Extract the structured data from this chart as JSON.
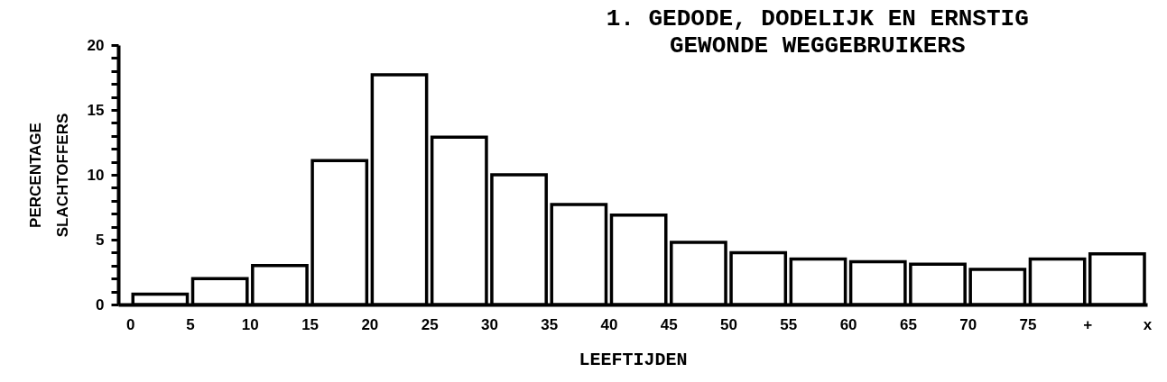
{
  "chart_data": {
    "type": "histogram",
    "title": "1. GEDODE, DODELIJK EN ERNSTIG GEWONDE WEGGEBRUIKERS",
    "xlabel": "LEEFTIJDEN",
    "ylabel": "PERCENTAGE SLACHTOFFERS",
    "bins": [
      0,
      5,
      10,
      15,
      20,
      25,
      30,
      35,
      40,
      45,
      50,
      55,
      60,
      65,
      70,
      75,
      80,
      85
    ],
    "values": [
      0.8,
      2.0,
      3.0,
      11.1,
      17.7,
      12.9,
      10.0,
      7.7,
      6.9,
      4.8,
      4.0,
      3.5,
      3.3,
      3.1,
      2.7,
      3.5,
      3.9
    ],
    "color": "#ffffff",
    "xlim": [
      -1,
      85
    ],
    "xticks": [
      0,
      5,
      10,
      15,
      20,
      25,
      30,
      35,
      40,
      45,
      50,
      55,
      60,
      65,
      70,
      75,
      {
        "value": 80,
        "label": "+"
      },
      {
        "value": 85,
        "label": "x"
      }
    ],
    "ylim": [
      0,
      20
    ],
    "yticks": [
      0,
      {
        "value": 1,
        "label": null
      },
      {
        "value": 2,
        "label": null
      },
      {
        "value": 3,
        "label": null
      },
      {
        "value": 4,
        "label": null
      },
      5,
      {
        "value": 6,
        "label": null
      },
      {
        "value": 7,
        "label": null
      },
      {
        "value": 8,
        "label": null
      },
      {
        "value": 9,
        "label": null
      },
      10,
      {
        "value": 11,
        "label": null
      },
      {
        "value": 12,
        "label": null
      },
      {
        "value": 13,
        "label": null
      },
      {
        "value": 14,
        "label": null
      },
      15,
      {
        "value": 16,
        "label": null
      },
      {
        "value": 17,
        "label": null
      },
      {
        "value": 18,
        "label": null
      },
      {
        "value": 19,
        "label": null
      },
      20
    ],
    "grid": false
  }
}
